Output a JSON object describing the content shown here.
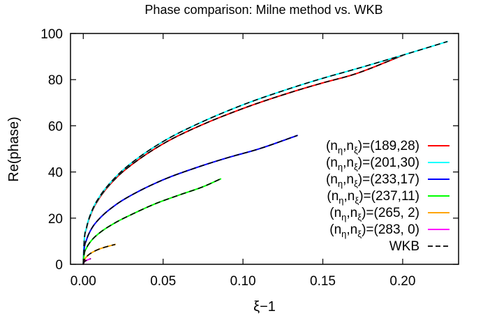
{
  "chart_data": {
    "type": "line",
    "title": "Phase comparison: Milne method vs. WKB",
    "xlabel": "ξ−1",
    "ylabel": "Re(phase)",
    "xlim": [
      -0.008,
      0.235
    ],
    "ylim": [
      0,
      100
    ],
    "x_ticks": [
      {
        "value": 0.0,
        "label": "0.00"
      },
      {
        "value": 0.05,
        "label": "0.05"
      },
      {
        "value": 0.1,
        "label": "0.10"
      },
      {
        "value": 0.15,
        "label": "0.15"
      },
      {
        "value": 0.2,
        "label": "0.20"
      }
    ],
    "y_ticks": [
      {
        "value": 0,
        "label": "0"
      },
      {
        "value": 20,
        "label": "20"
      },
      {
        "value": 40,
        "label": "40"
      },
      {
        "value": 60,
        "label": "60"
      },
      {
        "value": 80,
        "label": "80"
      },
      {
        "value": 100,
        "label": "100"
      }
    ],
    "grid": false,
    "legend_position": "bottom-right",
    "series": [
      {
        "legend_prefix": "(n",
        "legend_sub1": "η",
        "legend_mid": ",n",
        "legend_sub2": "ξ",
        "legend_suffix": ")=(189,28)",
        "color": "#ff0000",
        "x": [
          0.0,
          0.0005,
          0.002,
          0.005,
          0.01,
          0.02,
          0.03,
          0.05,
          0.07,
          0.1,
          0.13,
          0.15,
          0.17,
          0.2
        ],
        "y": [
          0,
          9.1,
          15.5,
          22.1,
          28.6,
          37.0,
          43.0,
          52.2,
          59.1,
          67.5,
          74.5,
          78.6,
          82.4,
          90.5
        ]
      },
      {
        "legend_prefix": "(n",
        "legend_sub1": "η",
        "legend_mid": ",n",
        "legend_sub2": "ξ",
        "legend_suffix": ")=(201,30)",
        "color": "#00ffff",
        "x": [
          0.0,
          0.0005,
          0.002,
          0.005,
          0.01,
          0.02,
          0.03,
          0.05,
          0.07,
          0.1,
          0.13,
          0.15,
          0.17,
          0.2,
          0.228
        ],
        "y": [
          0,
          9.3,
          15.8,
          22.5,
          29.1,
          37.6,
          43.8,
          53.2,
          60.3,
          69.1,
          76.3,
          80.6,
          84.5,
          90.6,
          96.5
        ]
      },
      {
        "legend_prefix": "(n",
        "legend_sub1": "η",
        "legend_mid": ",n",
        "legend_sub2": "ξ",
        "legend_suffix": ")=(233,17)",
        "color": "#0000ff",
        "x": [
          0.0,
          0.0005,
          0.002,
          0.005,
          0.01,
          0.02,
          0.03,
          0.05,
          0.07,
          0.09,
          0.11,
          0.134
        ],
        "y": [
          0,
          6.0,
          10.5,
          15.2,
          19.7,
          25.6,
          29.9,
          36.6,
          41.7,
          46.1,
          50.0,
          55.8
        ]
      },
      {
        "legend_prefix": "(n",
        "legend_sub1": "η",
        "legend_mid": ",n",
        "legend_sub2": "ξ",
        "legend_suffix": ")=(237,11)",
        "color": "#00ff00",
        "x": [
          0.0,
          0.0005,
          0.002,
          0.005,
          0.01,
          0.02,
          0.03,
          0.045,
          0.06,
          0.075,
          0.086
        ],
        "y": [
          0,
          4.0,
          7.0,
          10.2,
          13.5,
          18.0,
          21.5,
          26.2,
          30.0,
          33.6,
          37.0
        ]
      },
      {
        "legend_prefix": "(n",
        "legend_sub1": "η",
        "legend_mid": ",n",
        "legend_sub2": "ξ",
        "legend_suffix": ")=(265,  2)",
        "color": "#ffa500",
        "x": [
          0.0,
          0.001,
          0.003,
          0.006,
          0.01,
          0.015,
          0.02
        ],
        "y": [
          0,
          2.2,
          3.9,
          5.3,
          6.6,
          7.7,
          8.6
        ]
      },
      {
        "legend_prefix": "(n",
        "legend_sub1": "η",
        "legend_mid": ",n",
        "legend_sub2": "ξ",
        "legend_suffix": ")=(283,  0)",
        "color": "#ff00ff",
        "x": [
          0.0,
          0.0005,
          0.001,
          0.002,
          0.003,
          0.0045
        ],
        "y": [
          0,
          0.9,
          1.3,
          1.7,
          2.0,
          2.4
        ]
      }
    ],
    "reference": {
      "legend_label": "WKB",
      "color": "#000000",
      "dashed": true
    }
  }
}
